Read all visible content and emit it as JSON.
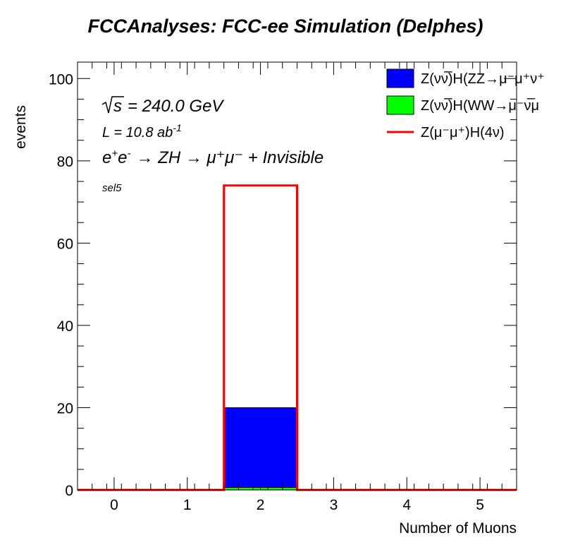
{
  "chart_data": {
    "type": "bar",
    "title": "FCCAnalyses: FCC-ee Simulation (Delphes)",
    "xlabel": "Number of Muons",
    "ylabel": "events",
    "xlim": [
      -0.5,
      5.5
    ],
    "ylim": [
      0,
      104
    ],
    "x_ticks": [
      0,
      1,
      2,
      3,
      4,
      5
    ],
    "y_ticks": [
      0,
      20,
      40,
      60,
      80,
      100
    ],
    "y_minor_step": 5,
    "bin_edges": [
      -0.5,
      0.5,
      1.5,
      2.5,
      3.5,
      4.5,
      5.5
    ],
    "series": [
      {
        "name": "Z(νν̅)H(ZZ→μ⁻μ⁺ν⁺",
        "style": "filled",
        "color": "#0000ff",
        "values": [
          0,
          0,
          19.4,
          0,
          0,
          0
        ]
      },
      {
        "name": "Z(νν̅)H(WW→μ⁻ν̅μ",
        "style": "filled",
        "color": "#00ff00",
        "values": [
          0,
          0,
          0.6,
          0,
          0,
          0
        ]
      },
      {
        "name": "Z(μ⁻μ⁺)H(4ν)",
        "style": "line",
        "color": "#ff0000",
        "values": [
          0,
          0,
          74,
          0,
          0,
          0
        ]
      }
    ],
    "annotations": {
      "sqrt_s": "= 240.0 GeV",
      "lumi_prefix": "L = 10.8 ab",
      "lumi_exp": "-1",
      "process": "→ ZH → μ⁺μ⁻ + Invisible",
      "selection": "sel5"
    },
    "legend_position": "top-right",
    "grid": false
  }
}
